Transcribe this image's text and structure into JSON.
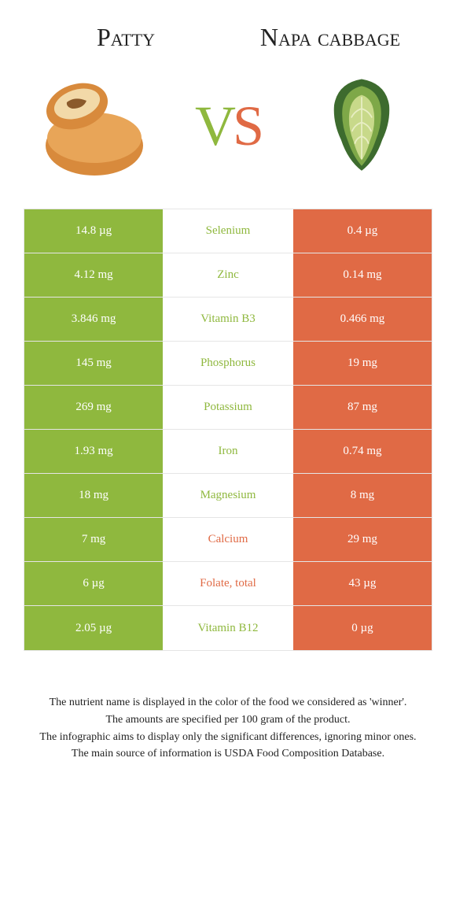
{
  "header": {
    "left_title": "Patty",
    "right_title": "Napa cabbage",
    "vs_v": "V",
    "vs_s": "S"
  },
  "colors": {
    "green": "#8fb83e",
    "orange": "#e06a45",
    "border": "#e5e5e5",
    "text": "#222222",
    "white": "#ffffff"
  },
  "table": {
    "rows": [
      {
        "nutrient": "Selenium",
        "left": "14.8 µg",
        "right": "0.4 µg",
        "winner": "left"
      },
      {
        "nutrient": "Zinc",
        "left": "4.12 mg",
        "right": "0.14 mg",
        "winner": "left"
      },
      {
        "nutrient": "Vitamin B3",
        "left": "3.846 mg",
        "right": "0.466 mg",
        "winner": "left"
      },
      {
        "nutrient": "Phosphorus",
        "left": "145 mg",
        "right": "19 mg",
        "winner": "left"
      },
      {
        "nutrient": "Potassium",
        "left": "269 mg",
        "right": "87 mg",
        "winner": "left"
      },
      {
        "nutrient": "Iron",
        "left": "1.93 mg",
        "right": "0.74 mg",
        "winner": "left"
      },
      {
        "nutrient": "Magnesium",
        "left": "18 mg",
        "right": "8 mg",
        "winner": "left"
      },
      {
        "nutrient": "Calcium",
        "left": "7 mg",
        "right": "29 mg",
        "winner": "right"
      },
      {
        "nutrient": "Folate, total",
        "left": "6 µg",
        "right": "43 µg",
        "winner": "right"
      },
      {
        "nutrient": "Vitamin B12",
        "left": "2.05 µg",
        "right": "0 µg",
        "winner": "left"
      }
    ]
  },
  "footer": {
    "line1": "The nutrient name is displayed in the color of the food we considered as 'winner'.",
    "line2": "The amounts are specified per 100 gram of the product.",
    "line3": "The infographic aims to display only the significant differences, ignoring minor ones.",
    "line4": "The main source of information is USDA Food Composition Database."
  }
}
